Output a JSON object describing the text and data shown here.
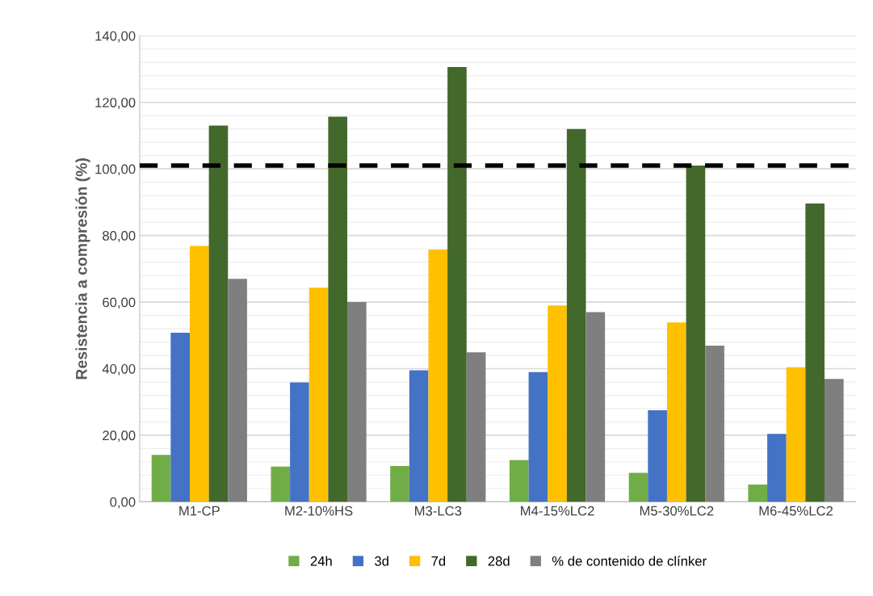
{
  "chart_data": {
    "type": "bar",
    "ylabel": "Resistencia a compresión (%)",
    "categories": [
      "M1-CP",
      "M2-10%HS",
      "M3-LC3",
      "M4-15%LC2",
      "M5-30%LC2",
      "M6-45%LC2"
    ],
    "series": [
      {
        "name": "24h",
        "color": "#70ad47",
        "values": [
          14.1,
          10.6,
          10.8,
          12.5,
          8.7,
          5.2
        ]
      },
      {
        "name": "3d",
        "color": "#4472c4",
        "values": [
          50.8,
          35.9,
          39.5,
          39.0,
          27.5,
          20.4
        ]
      },
      {
        "name": "7d",
        "color": "#ffc000",
        "values": [
          76.9,
          64.3,
          75.8,
          59.0,
          53.9,
          40.4
        ]
      },
      {
        "name": "28d",
        "color": "#43682b",
        "values": [
          113.0,
          115.7,
          130.6,
          112.0,
          101.0,
          89.6
        ]
      },
      {
        "name": "% de contenido de clínker",
        "color": "#7f7f7f",
        "values": [
          67.0,
          60.0,
          44.9,
          57.0,
          46.9,
          36.9
        ]
      }
    ],
    "ylim": [
      0,
      140
    ],
    "yticks": [
      {
        "value": 0,
        "label": "0,00"
      },
      {
        "value": 20,
        "label": "20,00"
      },
      {
        "value": 40,
        "label": "40,00"
      },
      {
        "value": 60,
        "label": "60,00"
      },
      {
        "value": 80,
        "label": "80,00"
      },
      {
        "value": 100,
        "label": "100,00"
      },
      {
        "value": 120,
        "label": "120,00"
      },
      {
        "value": 140,
        "label": "140,00"
      }
    ],
    "ref_lines": [
      {
        "axis": "y",
        "value": 101,
        "color": "#000000",
        "line_style": "dashed"
      }
    ],
    "grid": "y",
    "legend": "bottom"
  }
}
